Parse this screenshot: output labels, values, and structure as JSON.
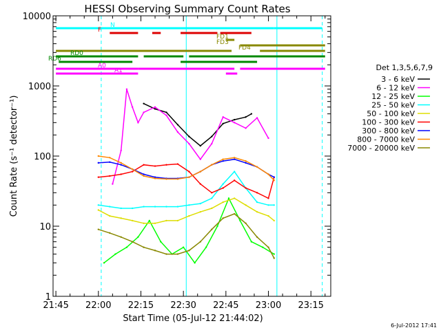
{
  "chart_data": {
    "type": "line",
    "title": "HESSI Observing Summary Count Rates",
    "xlabel": "Start Time (05-Jul-12 21:44:02)",
    "ylabel": "Count Rate (s⁻¹ detector⁻¹)",
    "xlim": [
      "21:44",
      "23:22"
    ],
    "ylim": [
      1,
      10000
    ],
    "y_scale": "log",
    "grid": false,
    "legend_position": "right",
    "x_ticks": [
      "21:45",
      "22:00",
      "22:15",
      "22:30",
      "22:45",
      "23:00",
      "23:15"
    ],
    "y_ticks": [
      "1",
      "10",
      "100",
      "1000",
      "10000"
    ],
    "legend_title": "Det 1,3,5,6,7,9",
    "series": [
      {
        "name": "3 - 6 keV",
        "color": "#000000",
        "x": [
          "22:16",
          "22:20",
          "22:24",
          "22:28",
          "22:32",
          "22:36",
          "22:40",
          "22:44",
          "22:48",
          "22:52",
          "22:54"
        ],
        "values": [
          560,
          470,
          420,
          280,
          190,
          140,
          190,
          290,
          330,
          360,
          400
        ]
      },
      {
        "name": "6 - 12 keV",
        "color": "#ff00ff",
        "x": [
          "22:05",
          "22:08",
          "22:10",
          "22:12",
          "22:14",
          "22:16",
          "22:20",
          "22:24",
          "22:28",
          "22:32",
          "22:36",
          "22:40",
          "22:44",
          "22:48",
          "22:52",
          "22:56",
          "23:00"
        ],
        "values": [
          40,
          120,
          900,
          500,
          300,
          420,
          500,
          380,
          220,
          150,
          90,
          150,
          360,
          300,
          250,
          350,
          180
        ]
      },
      {
        "name": "12 - 25 keV",
        "color": "#00ff00",
        "x": [
          "22:02",
          "22:06",
          "22:10",
          "22:14",
          "22:18",
          "22:22",
          "22:26",
          "22:30",
          "22:34",
          "22:38",
          "22:42",
          "22:46",
          "22:50",
          "22:54",
          "22:58",
          "23:02"
        ],
        "values": [
          3,
          4,
          5,
          7,
          12,
          6,
          4,
          5,
          3,
          5,
          10,
          25,
          12,
          6,
          5,
          4
        ]
      },
      {
        "name": "25 - 50 keV",
        "color": "#00ffff",
        "x": [
          "22:00",
          "22:04",
          "22:08",
          "22:12",
          "22:16",
          "22:20",
          "22:24",
          "22:28",
          "22:32",
          "22:36",
          "22:40",
          "22:44",
          "22:48",
          "22:52",
          "22:56",
          "23:00",
          "23:02"
        ],
        "values": [
          20,
          19,
          18,
          18,
          19,
          19,
          19,
          19,
          20,
          21,
          25,
          40,
          60,
          35,
          22,
          20,
          20
        ]
      },
      {
        "name": "50 - 100 keV",
        "color": "#dddd00",
        "x": [
          "22:00",
          "22:04",
          "22:08",
          "22:12",
          "22:16",
          "22:20",
          "22:24",
          "22:28",
          "22:32",
          "22:36",
          "22:40",
          "22:44",
          "22:48",
          "22:52",
          "22:56",
          "23:00",
          "23:02"
        ],
        "values": [
          17,
          14,
          13,
          12,
          11,
          11,
          12,
          12,
          14,
          16,
          18,
          22,
          25,
          20,
          16,
          14,
          12
        ]
      },
      {
        "name": "100 - 300 keV",
        "color": "#ff0000",
        "x": [
          "22:00",
          "22:04",
          "22:08",
          "22:12",
          "22:16",
          "22:20",
          "22:24",
          "22:28",
          "22:32",
          "22:36",
          "22:40",
          "22:44",
          "22:48",
          "22:52",
          "22:56",
          "23:00",
          "23:02"
        ],
        "values": [
          50,
          52,
          55,
          60,
          75,
          72,
          75,
          77,
          60,
          40,
          30,
          35,
          45,
          35,
          30,
          25,
          50
        ]
      },
      {
        "name": "300 - 800 keV",
        "color": "#0000ff",
        "x": [
          "22:00",
          "22:04",
          "22:08",
          "22:12",
          "22:16",
          "22:20",
          "22:24",
          "22:28",
          "22:32",
          "22:36",
          "22:40",
          "22:44",
          "22:48",
          "22:52",
          "22:56",
          "23:00",
          "23:02"
        ],
        "values": [
          80,
          82,
          75,
          65,
          55,
          50,
          48,
          48,
          50,
          60,
          75,
          85,
          90,
          80,
          70,
          55,
          50
        ]
      },
      {
        "name": "800 - 7000 keV",
        "color": "#ff8800",
        "x": [
          "22:00",
          "22:04",
          "22:08",
          "22:12",
          "22:16",
          "22:20",
          "22:24",
          "22:28",
          "22:32",
          "22:36",
          "22:40",
          "22:44",
          "22:48",
          "22:52",
          "22:56",
          "23:00",
          "23:02"
        ],
        "values": [
          100,
          95,
          80,
          65,
          52,
          48,
          47,
          47,
          50,
          60,
          75,
          90,
          95,
          85,
          70,
          55,
          45
        ]
      },
      {
        "name": "7000 - 20000 keV",
        "color": "#888800",
        "x": [
          "22:00",
          "22:04",
          "22:08",
          "22:12",
          "22:16",
          "22:20",
          "22:24",
          "22:28",
          "22:32",
          "22:36",
          "22:40",
          "22:44",
          "22:48",
          "22:52",
          "22:56",
          "23:00",
          "23:02"
        ],
        "values": [
          9,
          8,
          7,
          6,
          5,
          4.5,
          4,
          4,
          4.5,
          6,
          9,
          13,
          15,
          11,
          7,
          5,
          3.5
        ]
      }
    ],
    "flag_bars": [
      {
        "label": "N",
        "color": "#00ffff",
        "segments": [
          [
            "21:45",
            "22:01"
          ],
          [
            "22:01",
            "23:02"
          ],
          [
            "23:02",
            "23:19"
          ]
        ]
      },
      {
        "label": "F",
        "color": "#dd0000",
        "segments": [
          [
            "22:04",
            "22:14"
          ],
          [
            "22:19",
            "22:22"
          ],
          [
            "22:29",
            "22:42"
          ],
          [
            "22:43",
            "22:54"
          ]
        ]
      },
      {
        "label": "FD1",
        "color": "#888800",
        "segments": [
          [
            "22:45",
            "22:48"
          ]
        ]
      },
      {
        "label": "FD3",
        "color": "#888800",
        "segments": [
          [
            "22:50",
            "23:20"
          ]
        ]
      },
      {
        "label": "FD4",
        "color": "#888800",
        "segments": [
          [
            "21:45",
            "22:47"
          ],
          [
            "22:57",
            "23:20"
          ]
        ]
      },
      {
        "label": "RD0",
        "color": "#008800",
        "segments": [
          [
            "21:45",
            "22:14"
          ],
          [
            "22:16",
            "22:30"
          ],
          [
            "22:32",
            "23:20"
          ]
        ]
      },
      {
        "label": "RD6",
        "color": "#008800",
        "segments": [
          [
            "21:46",
            "22:12"
          ],
          [
            "22:29",
            "22:56"
          ]
        ]
      },
      {
        "label": "A0",
        "color": "#ff00ff",
        "segments": [
          [
            "21:45",
            "22:14"
          ],
          [
            "22:14",
            "22:48"
          ],
          [
            "22:50",
            "23:20"
          ]
        ]
      },
      {
        "label": "A1",
        "color": "#ff00ff",
        "segments": [
          [
            "21:45",
            "22:14"
          ],
          [
            "22:45",
            "22:49"
          ]
        ]
      }
    ],
    "vertical_markers": [
      {
        "color": "#00ffff",
        "x": [
          "22:01",
          "23:19"
        ],
        "style": "dashed"
      },
      {
        "color": "#00ffff",
        "x": [
          "22:31",
          "23:03"
        ],
        "style": "solid"
      }
    ]
  },
  "footer": {
    "timestamp": "6-Jul-2012 17:41"
  }
}
